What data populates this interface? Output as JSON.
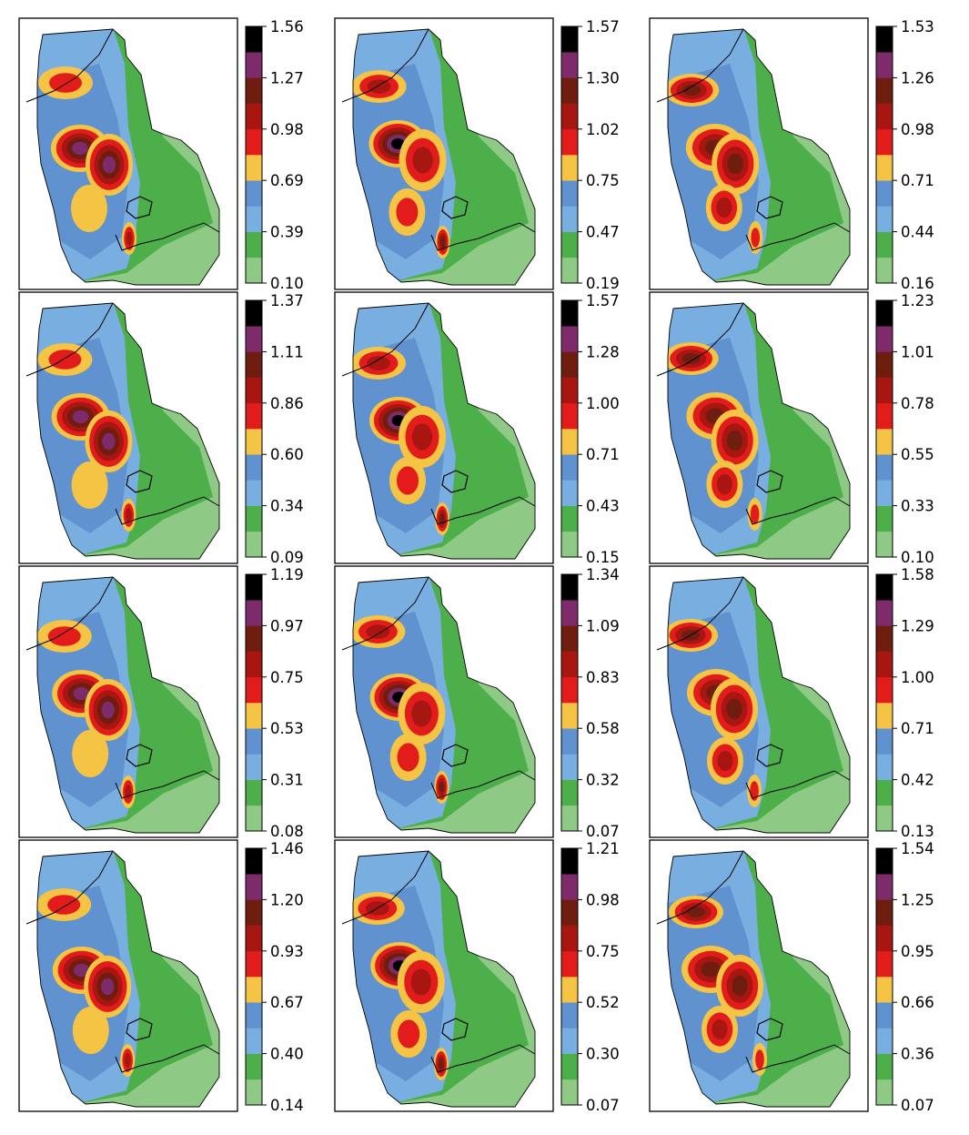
{
  "chart_data": {
    "type": "heatmap",
    "layout": {
      "rows": 4,
      "cols": 3
    },
    "colormap": {
      "levels": 10,
      "colors": [
        "#8ec985",
        "#4daf4a",
        "#79aee0",
        "#5f92cf",
        "#f6c444",
        "#e21b1b",
        "#a81612",
        "#6f1d0f",
        "#7e2b6b",
        "#000000"
      ]
    },
    "panels": [
      {
        "colorbar_ticks": [
          "0.10",
          "0.39",
          "0.69",
          "0.98",
          "1.27",
          "1.56"
        ]
      },
      {
        "colorbar_ticks": [
          "0.19",
          "0.47",
          "0.75",
          "1.02",
          "1.30",
          "1.57"
        ]
      },
      {
        "colorbar_ticks": [
          "0.16",
          "0.44",
          "0.71",
          "0.98",
          "1.26",
          "1.53"
        ]
      },
      {
        "colorbar_ticks": [
          "0.09",
          "0.34",
          "0.60",
          "0.86",
          "1.11",
          "1.37"
        ]
      },
      {
        "colorbar_ticks": [
          "0.15",
          "0.43",
          "0.71",
          "1.00",
          "1.28",
          "1.57"
        ]
      },
      {
        "colorbar_ticks": [
          "0.10",
          "0.33",
          "0.55",
          "0.78",
          "1.01",
          "1.23"
        ]
      },
      {
        "colorbar_ticks": [
          "0.08",
          "0.31",
          "0.53",
          "0.75",
          "0.97",
          "1.19"
        ]
      },
      {
        "colorbar_ticks": [
          "0.07",
          "0.32",
          "0.58",
          "0.83",
          "1.09",
          "1.34"
        ]
      },
      {
        "colorbar_ticks": [
          "0.13",
          "0.42",
          "0.71",
          "1.00",
          "1.29",
          "1.58"
        ]
      },
      {
        "colorbar_ticks": [
          "0.14",
          "0.40",
          "0.67",
          "0.93",
          "1.20",
          "1.46"
        ]
      },
      {
        "colorbar_ticks": [
          "0.07",
          "0.30",
          "0.52",
          "0.75",
          "0.98",
          "1.21"
        ]
      },
      {
        "colorbar_ticks": [
          "0.07",
          "0.36",
          "0.66",
          "0.95",
          "1.25",
          "1.54"
        ]
      }
    ]
  }
}
